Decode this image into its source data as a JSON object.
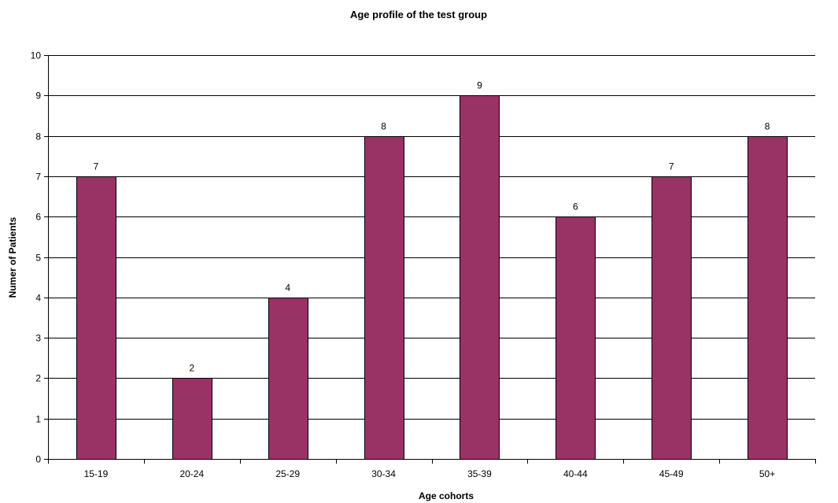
{
  "chart_data": {
    "type": "bar",
    "title": "Age profile of the test group",
    "xlabel": "Age cohorts",
    "ylabel": "Numer of Patients",
    "categories": [
      "15-19",
      "20-24",
      "25-29",
      "30-34",
      "35-39",
      "40-44",
      "45-49",
      "50+"
    ],
    "values": [
      7,
      2,
      4,
      8,
      9,
      6,
      7,
      8
    ],
    "ylim": [
      0,
      10
    ],
    "yticks": [
      0,
      1,
      2,
      3,
      4,
      5,
      6,
      7,
      8,
      9,
      10
    ],
    "grid": true,
    "legend": "none",
    "bar_color": "#993366",
    "data_labels": true
  }
}
